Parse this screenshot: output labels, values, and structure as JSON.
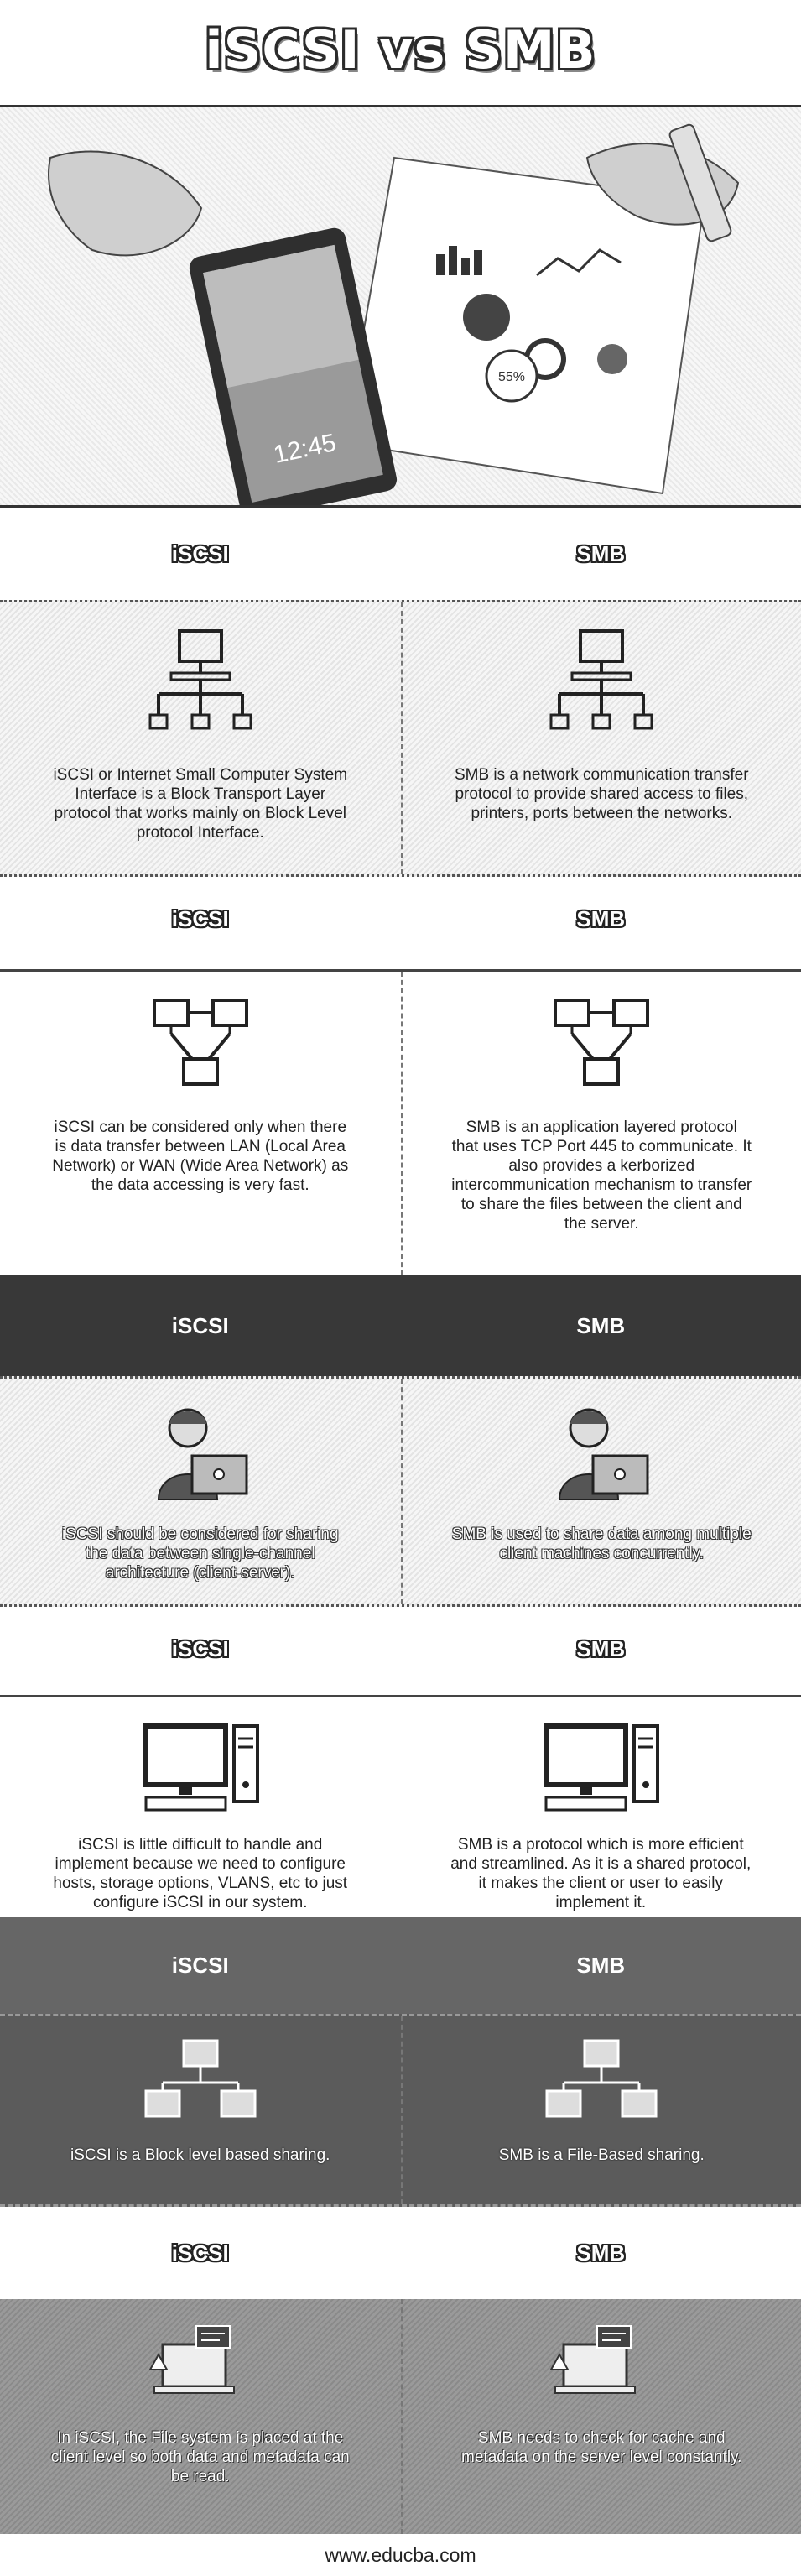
{
  "title": "iSCSI vs SMB",
  "footer": "www.educba.com",
  "hero": {
    "phone_clock": "12:45",
    "chart_percent": "55%"
  },
  "sections": [
    {
      "left_header": "iSCSI",
      "right_header": "SMB",
      "icon": "network-tree-icon",
      "left_text": "iSCSI or Internet Small Computer System Interface is a Block Transport Layer protocol that works mainly on Block Level protocol Interface.",
      "right_text": "SMB is a network communication transfer protocol to provide shared access to files, printers, ports between the networks."
    },
    {
      "left_header": "iSCSI",
      "right_header": "SMB",
      "icon": "linked-computers-icon",
      "left_text": "iSCSI can be considered only when there is data transfer between LAN (Local Area Network) or WAN (Wide Area Network) as the data accessing is very fast.",
      "right_text": "SMB is an application layered protocol that uses TCP Port 445 to communicate. It also provides a kerborized intercommunication mechanism to transfer to share the files between the client and the server."
    },
    {
      "left_header": "iSCSI",
      "right_header": "SMB",
      "icon": "user-laptop-icon",
      "left_text": "iSCSI should be considered for sharing the data between single-channel architecture (client-server).",
      "right_text": "SMB is used to share data among multiple client machines concurrently."
    },
    {
      "left_header": "iSCSI",
      "right_header": "SMB",
      "icon": "desktop-computer-icon",
      "left_text": "iSCSI is little difficult to handle and implement because we need to configure hosts, storage options, VLANS, etc to just configure iSCSI in our system.",
      "right_text": "SMB is a protocol which is more efficient and streamlined. As it is a shared protocol, it makes the client or user to easily implement it."
    },
    {
      "left_header": "iSCSI",
      "right_header": "SMB",
      "icon": "monitor-network-icon",
      "left_text": "iSCSI is a Block level based sharing.",
      "right_text": "SMB is a File-Based sharing."
    },
    {
      "left_header": "iSCSI",
      "right_header": "SMB",
      "icon": "laptop-chat-icon",
      "left_text": "In iSCSI, the File system is placed at the client level so both data and metadata can be read.",
      "right_text": "SMB needs to check for cache and metadata on the server level constantly."
    }
  ]
}
